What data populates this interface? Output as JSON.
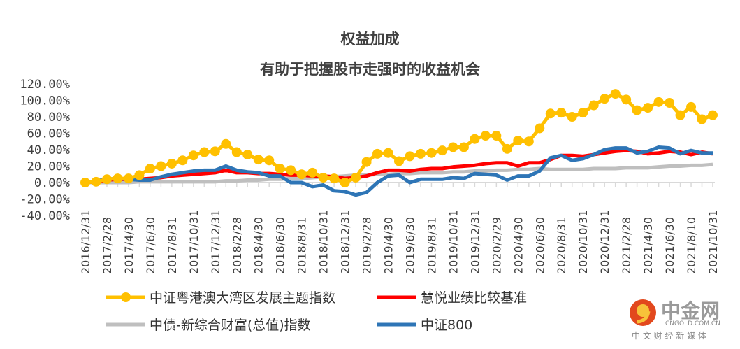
{
  "chart_data": {
    "type": "line",
    "title": "权益加成",
    "subtitle": "有助于把握股市走强时的收益机会",
    "ylim": [
      -40,
      120
    ],
    "yticks": [
      "120.00%",
      "100.00%",
      "80.00%",
      "60.00%",
      "40.00%",
      "20.00%",
      "0.00%",
      "-20.00%",
      "-40.00%"
    ],
    "ytick_values": [
      120,
      100,
      80,
      60,
      40,
      20,
      0,
      -20,
      -40
    ],
    "xtick_labels": [
      "2016/12/31",
      "2017/2/28",
      "2017/4/30",
      "2017/6/30",
      "2017/8/31",
      "2017/10/31",
      "2017/12/31",
      "2018/2/28",
      "2018/4/30",
      "2018/6/30",
      "2018/8/31",
      "2018/10/31",
      "2018/12/31",
      "2019/2/28",
      "2019/4/30",
      "2019/6/30",
      "2019/8/31",
      "2019/10/31",
      "2019/12/31",
      "2020/2/29",
      "2020/4/30",
      "2020/6/30",
      "2020/8/31",
      "2020/10/31",
      "2020/12/31",
      "2021/2/28",
      "2021/4/30",
      "2021/6/30",
      "2021/8/10",
      "2021/10/31"
    ],
    "legend_position": "bottom",
    "series": [
      {
        "name": "中证粤港澳大湾区发展主题指数",
        "color": "#FFC000",
        "marker": true,
        "values": [
          0,
          1,
          4,
          5,
          5,
          9,
          17,
          20,
          23,
          27,
          33,
          37,
          38,
          47,
          37,
          34,
          28,
          27,
          17,
          15,
          10,
          12,
          6,
          5,
          0,
          6,
          25,
          35,
          36,
          26,
          32,
          35,
          36,
          39,
          43,
          43,
          53,
          57,
          57,
          41,
          51,
          50,
          66,
          84,
          85,
          80,
          85,
          94,
          102,
          108,
          101,
          88,
          91,
          98,
          97,
          82,
          92,
          77,
          82
        ]
      },
      {
        "name": "慧悦业绩比较基准",
        "color": "#FF0000",
        "marker": false,
        "values": [
          0,
          1,
          3,
          4,
          4,
          4,
          5,
          6,
          8,
          9,
          10,
          11,
          12,
          15,
          12,
          12,
          11,
          11,
          10,
          9,
          9,
          8,
          8,
          7,
          5,
          6,
          8,
          12,
          15,
          15,
          14,
          16,
          17,
          17,
          19,
          20,
          21,
          23,
          24,
          24,
          20,
          24,
          24,
          28,
          33,
          33,
          32,
          34,
          36,
          38,
          39,
          38,
          35,
          36,
          38,
          37,
          34,
          37,
          35
        ]
      },
      {
        "name": "中债-新综合财富(总值)指数",
        "color": "#BFBFBF",
        "marker": false,
        "values": [
          0,
          0,
          0,
          0,
          0,
          1,
          1,
          1,
          1,
          1,
          1,
          1,
          1,
          2,
          2,
          3,
          3,
          4,
          4,
          5,
          5,
          6,
          7,
          7,
          8,
          9,
          9,
          10,
          10,
          11,
          11,
          12,
          12,
          12,
          13,
          13,
          14,
          14,
          15,
          15,
          16,
          16,
          17,
          16,
          16,
          16,
          16,
          17,
          17,
          17,
          18,
          18,
          18,
          19,
          20,
          20,
          21,
          21,
          22
        ]
      },
      {
        "name": "中证800",
        "color": "#2E75B6",
        "marker": false,
        "values": [
          0,
          2,
          4,
          5,
          4,
          3,
          3,
          7,
          10,
          12,
          14,
          15,
          15,
          20,
          15,
          13,
          12,
          8,
          8,
          0,
          0,
          -5,
          -3,
          -10,
          -11,
          -15,
          -12,
          0,
          8,
          9,
          0,
          4,
          4,
          4,
          6,
          5,
          11,
          10,
          9,
          3,
          8,
          8,
          14,
          30,
          33,
          27,
          29,
          34,
          40,
          42,
          42,
          36,
          38,
          43,
          42,
          35,
          39,
          36,
          36
        ]
      }
    ]
  },
  "watermark": {
    "brand": "中金网",
    "domain": "CNGOLD.COM.CN",
    "slogan": "中 文 财 经 新 媒 体"
  }
}
